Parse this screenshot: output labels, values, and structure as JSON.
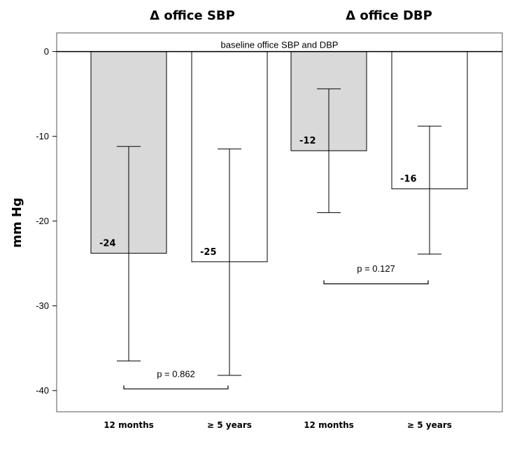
{
  "chart_data": {
    "type": "bar",
    "group_titles": [
      "Δ office SBP",
      "Δ office DBP"
    ],
    "ylabel": "mm Hg",
    "ylim": [
      -42.5,
      2.2
    ],
    "yticks": [
      0,
      -10,
      -20,
      -30,
      -40
    ],
    "baseline_label": "baseline office SBP and DBP",
    "categories": [
      "12 months",
      "≥ 5 years",
      "12 months",
      "≥ 5 years"
    ],
    "bars": [
      {
        "group": "Δ office SBP",
        "category": "12 months",
        "value": -23.8,
        "label": "-24",
        "error_low": -36.5,
        "error_high": -11.2,
        "fill": "#d9d9d9"
      },
      {
        "group": "Δ office SBP",
        "category": "≥ 5 years",
        "value": -24.8,
        "label": "-25",
        "error_low": -38.2,
        "error_high": -11.5,
        "fill": "#ffffff"
      },
      {
        "group": "Δ office DBP",
        "category": "12 months",
        "value": -11.7,
        "label": "-12",
        "error_low": -19.0,
        "error_high": -4.4,
        "fill": "#d9d9d9"
      },
      {
        "group": "Δ office DBP",
        "category": "≥ 5 years",
        "value": -16.2,
        "label": "-16",
        "error_low": -23.9,
        "error_high": -8.8,
        "fill": "#ffffff"
      }
    ],
    "comparisons": [
      {
        "group": "Δ office SBP",
        "text": "p = 0.862",
        "y": -39.8
      },
      {
        "group": "Δ office DBP",
        "text": "p = 0.127",
        "y": -27.4
      }
    ],
    "grid": false,
    "legend": "none"
  }
}
